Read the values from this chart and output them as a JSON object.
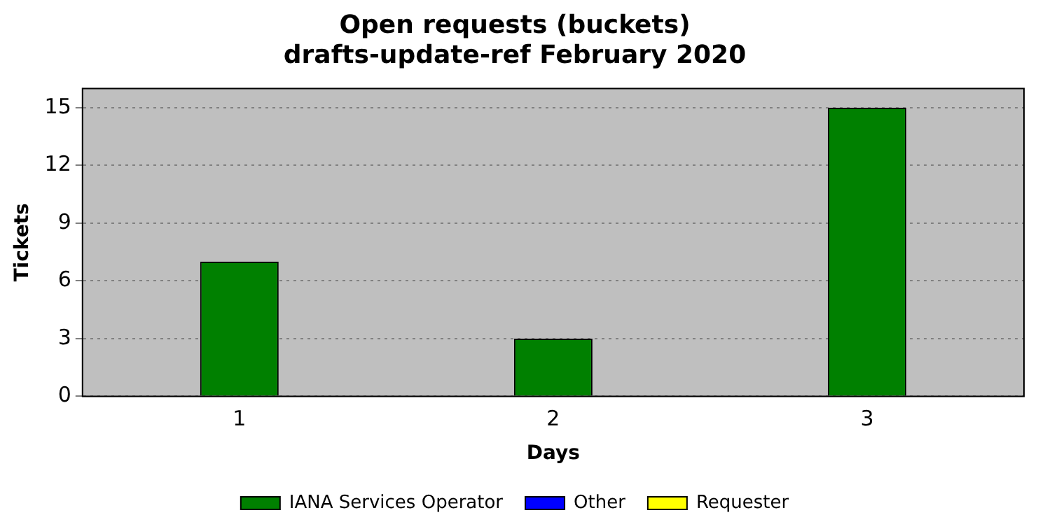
{
  "chart_data": {
    "type": "bar",
    "title": "Open requests (buckets)",
    "subtitle": "drafts-update-ref February 2020",
    "xlabel": "Days",
    "ylabel": "Tickets",
    "categories": [
      "1",
      "2",
      "3"
    ],
    "stacked": true,
    "series": [
      {
        "name": "IANA Services Operator",
        "color": "#008000",
        "values": [
          7,
          3,
          15
        ]
      },
      {
        "name": "Other",
        "color": "#0000ff",
        "values": [
          0,
          0,
          0
        ]
      },
      {
        "name": "Requester",
        "color": "#ffff00",
        "values": [
          0,
          0,
          0
        ]
      }
    ],
    "ylim": [
      0,
      16
    ],
    "yticks": [
      0,
      3,
      6,
      9,
      12,
      15
    ],
    "grid": "y",
    "legend": "bottom"
  }
}
